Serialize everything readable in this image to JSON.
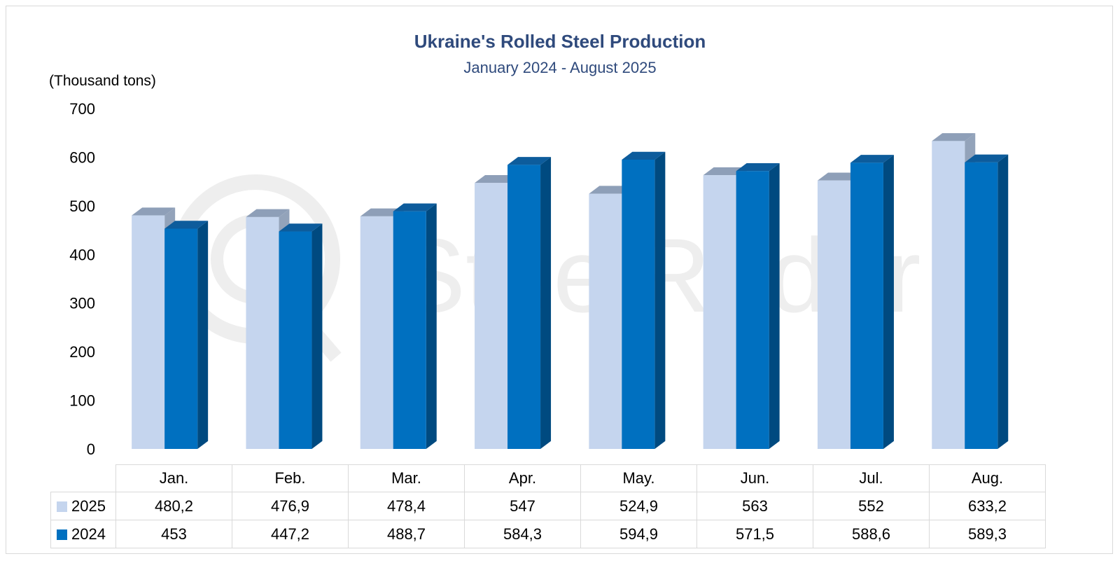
{
  "chart_data": {
    "type": "bar",
    "title": "Ukraine's Rolled Steel Production",
    "subtitle": "January 2024 - August 2025",
    "ylabel": "(Thousand tons)",
    "xlabel": "",
    "ylim": [
      0,
      700
    ],
    "yticks": [
      "0",
      "100",
      "200",
      "300",
      "400",
      "500",
      "600",
      "700"
    ],
    "categories": [
      "Jan.",
      "Feb.",
      "Mar.",
      "Apr.",
      "May.",
      "Jun.",
      "Jul.",
      "Aug."
    ],
    "series": [
      {
        "name": "2025",
        "color": "#c5d5ee",
        "values": [
          480.2,
          476.9,
          478.4,
          547,
          524.9,
          563,
          552,
          633.2
        ],
        "labels": [
          "480,2",
          "476,9",
          "478,4",
          "547",
          "524,9",
          "563",
          "552",
          "633,2"
        ]
      },
      {
        "name": "2024",
        "color": "#0070c0",
        "values": [
          453,
          447.2,
          488.7,
          584.3,
          594.9,
          571.5,
          588.6,
          589.3
        ],
        "labels": [
          "453",
          "447,2",
          "488,7",
          "584,3",
          "594,9",
          "571,5",
          "588,6",
          "589,3"
        ]
      }
    ],
    "grid": false,
    "legend": "data-table",
    "three_d": true
  },
  "watermark": "SteelRadar"
}
